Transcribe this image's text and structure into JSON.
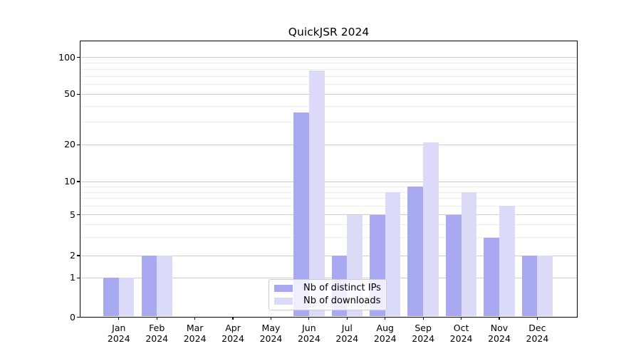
{
  "title": "QuickJSR 2024",
  "chart_data": {
    "type": "bar",
    "title": "QuickJSR 2024",
    "categories": [
      "Jan",
      "Feb",
      "Mar",
      "Apr",
      "May",
      "Jun",
      "Jul",
      "Aug",
      "Sep",
      "Oct",
      "Nov",
      "Dec"
    ],
    "year": "2024",
    "series": [
      {
        "name": "Nb of distinct IPs",
        "color": "#a9a9f2",
        "values": [
          1,
          2,
          0,
          0,
          0,
          36,
          2,
          5,
          9,
          5,
          3,
          2
        ]
      },
      {
        "name": "Nb of downloads",
        "color": "#dbdbf9",
        "values": [
          1,
          2,
          0,
          0,
          0,
          78,
          5,
          8,
          21,
          8,
          6,
          2
        ]
      }
    ],
    "xlabel": "",
    "ylabel": "",
    "y_axis_ticks": [
      "0",
      "1",
      "2",
      "5",
      "10",
      "20",
      "50",
      "100"
    ],
    "y_major_tick_values": [
      0,
      1,
      2,
      5,
      10,
      20,
      50,
      100
    ],
    "y_minor_tick_values": [
      3,
      4,
      6,
      7,
      8,
      9,
      30,
      40,
      60,
      70,
      80,
      90
    ],
    "y_scale": "log-like",
    "ylim": [
      0,
      110
    ],
    "grid": true,
    "legend_position": "lower center",
    "major_grid_color": "#cdcdcd",
    "minor_grid_color": "#ededed",
    "axis_color": "#000000",
    "background_color": "#ffffff"
  }
}
